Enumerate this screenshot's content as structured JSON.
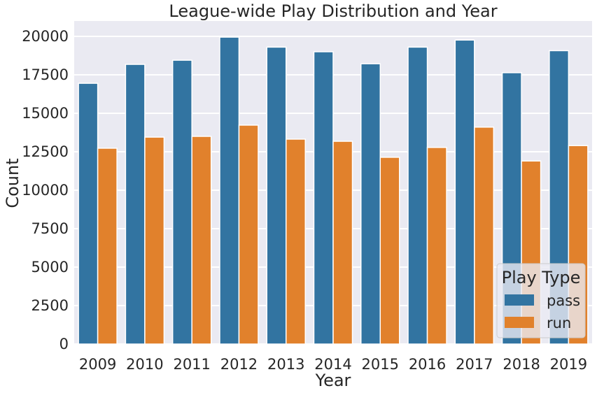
{
  "chart_data": {
    "type": "bar",
    "title": "League-wide Play Distribution and Year",
    "xlabel": "Year",
    "ylabel": "Count",
    "categories": [
      "2009",
      "2010",
      "2011",
      "2012",
      "2013",
      "2014",
      "2015",
      "2016",
      "2017",
      "2018",
      "2019"
    ],
    "series": [
      {
        "name": "pass",
        "color": "#3274a1",
        "values": [
          16950,
          18180,
          18450,
          19950,
          19300,
          19000,
          18220,
          19300,
          19760,
          17640,
          19070
        ]
      },
      {
        "name": "run",
        "color": "#e1812c",
        "values": [
          12730,
          13450,
          13500,
          14230,
          13320,
          13180,
          12140,
          12780,
          14100,
          11900,
          12900
        ]
      }
    ],
    "ylim": [
      0,
      21000
    ],
    "yticks": [
      0,
      2500,
      5000,
      7500,
      10000,
      12500,
      15000,
      17500,
      20000
    ],
    "grid": true,
    "legend": {
      "title": "Play Type",
      "position": "bottom-right"
    }
  }
}
